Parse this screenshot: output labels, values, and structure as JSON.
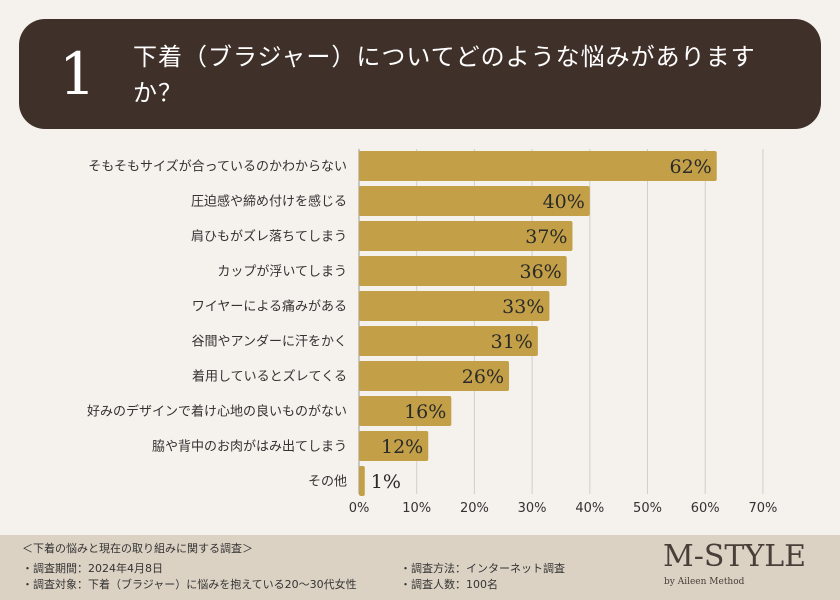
{
  "header": {
    "number": "1",
    "title": "下着（ブラジャー）についてどのような悩みがありますか？"
  },
  "chart_data": {
    "type": "bar",
    "orientation": "horizontal",
    "categories": [
      "そもそもサイズが合っているのかわからない",
      "圧迫感や締め付けを感じる",
      "肩ひもがズレ落ちてしまう",
      "カップが浮いてしまう",
      "ワイヤーによる痛みがある",
      "谷間やアンダーに汗をかく",
      "着用しているとズレてくる",
      "好みのデザインで着け心地の良いものがない",
      "脇や背中のお肉がはみ出てしまう",
      "その他"
    ],
    "values": [
      62,
      40,
      37,
      36,
      33,
      31,
      26,
      16,
      12,
      1
    ],
    "value_labels": [
      "62%",
      "40%",
      "37%",
      "36%",
      "33%",
      "31%",
      "26%",
      "16%",
      "12%",
      "1%"
    ],
    "xlim": [
      0,
      70
    ],
    "x_ticks": [
      "0%",
      "10%",
      "20%",
      "30%",
      "40%",
      "50%",
      "60%",
      "70%"
    ],
    "grid": true,
    "bar_color": "#c3a047"
  },
  "footer": {
    "heading": "＜下着の悩みと現在の取り組みに関する調査＞",
    "period": "・調査期間：2024年4月8日",
    "target": "・調査対象：下着（ブラジャー）に悩みを抱えている20～30代女性",
    "method": "・調査方法：インターネット調査",
    "count": "・調査人数：100名"
  },
  "brand": {
    "name": "M-STYLE",
    "tagline": "by Aileen Method"
  }
}
